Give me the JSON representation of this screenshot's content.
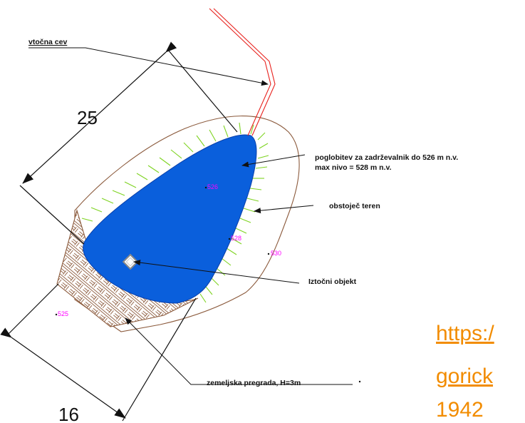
{
  "labels": {
    "inlet_pipe": "vtočna cev",
    "basin_deepening_line1": "poglobitev za zadrževalnik do 526 m n.v.",
    "basin_deepening_line2": "max nivo = 528 m n.v.",
    "existing_terrain": "obstoječ teren",
    "outlet_object": "Iztočni objekt",
    "earth_dam": "zemeljska pregrada, H=3m"
  },
  "dimensions": {
    "length": "25",
    "width": "16"
  },
  "elevations": {
    "e526": "526",
    "e528": "528",
    "e530": "530",
    "e525": "525"
  },
  "link": {
    "line1": "https:/",
    "line2": "gorick",
    "line3": "1942"
  },
  "colors": {
    "water": "#0a5fdc",
    "inlet_pipe": "#e8211d",
    "terrain_outline": "#8b5a3c",
    "slope_hatch": "#7ed321",
    "dam_hatch": "#8b5a3c",
    "elevation_text": "#ff00ff",
    "link_text": "#f28c00"
  }
}
